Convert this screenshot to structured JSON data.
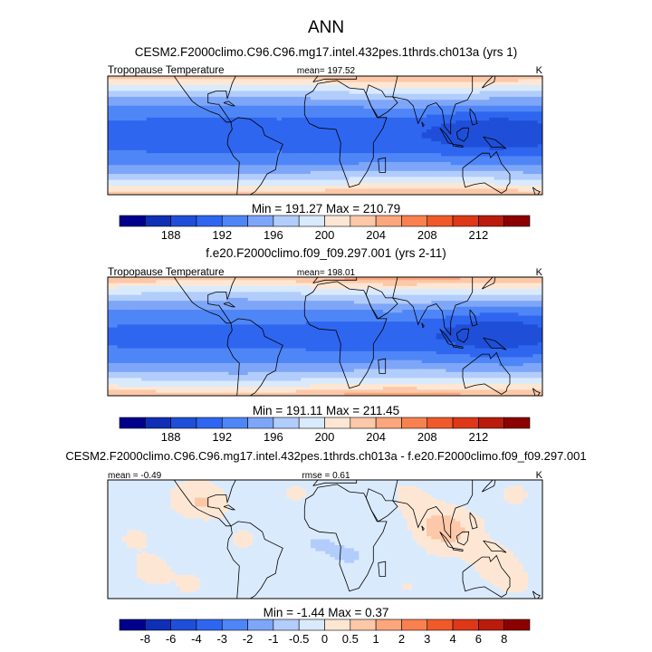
{
  "page_title": "ANN",
  "colors": {
    "abs_scale": [
      "#00008c",
      "#0f2fb4",
      "#1f4fd8",
      "#2f66f0",
      "#4f86f7",
      "#7ea6f8",
      "#b2cdfb",
      "#daeafd",
      "#fde7d4",
      "#fcc8a8",
      "#fba67c",
      "#f8814f",
      "#f05a2a",
      "#dd3818",
      "#b91c0c",
      "#8c0000"
    ],
    "diff_scale": [
      "#00008c",
      "#0f2fb4",
      "#1f4fd8",
      "#2f66f0",
      "#4f86f7",
      "#7ea6f8",
      "#b2cdfb",
      "#daeafd",
      "#fde7d4",
      "#fcc8a8",
      "#fba67c",
      "#f8814f",
      "#f05a2a",
      "#dd3818",
      "#b91c0c",
      "#8c0000"
    ],
    "coastline": "#000000"
  },
  "chart_data": [
    {
      "type": "heatmap",
      "title": "CESM2.F2000climo.C96.C96.mg17.intel.432pes.1thrds.ch013a (yrs 1)",
      "variable_label": "Tropopause Temperature",
      "mean_label": "mean= 197.52",
      "units": "K",
      "minmax_label": "Min = 191.27 Max = 210.79",
      "min": 191.27,
      "max": 210.79,
      "colorbar_bounds": [
        186,
        188,
        190,
        192,
        194,
        196,
        198,
        200,
        202,
        204,
        206,
        208,
        210,
        212,
        214
      ],
      "colorbar_ticks": [
        "188",
        "192",
        "196",
        "200",
        "204",
        "208",
        "212"
      ],
      "field": "abs"
    },
    {
      "type": "heatmap",
      "title": "f.e20.F2000climo.f09_f09.297.001 (yrs 2-11)",
      "variable_label": "Tropopause Temperature",
      "mean_label": "mean= 198.01",
      "units": "K",
      "minmax_label": "Min = 191.11 Max = 211.45",
      "min": 191.11,
      "max": 211.45,
      "colorbar_bounds": [
        186,
        188,
        190,
        192,
        194,
        196,
        198,
        200,
        202,
        204,
        206,
        208,
        210,
        212,
        214
      ],
      "colorbar_ticks": [
        "188",
        "192",
        "196",
        "200",
        "204",
        "208",
        "212"
      ],
      "field": "abs"
    },
    {
      "type": "heatmap",
      "title": "CESM2.F2000climo.C96.C96.mg17.intel.432pes.1thrds.ch013a - f.e20.F2000climo.f09_f09.297.001",
      "mean_label": "mean =  -0.49",
      "rmse_label": "rmse =   0.61",
      "units": "K",
      "minmax_label": "Min =  -1.44 Max =   0.37",
      "min": -1.44,
      "max": 0.37,
      "colorbar_bounds": [
        -9,
        -8,
        -6,
        -4,
        -3,
        -2,
        -1,
        -0.5,
        0,
        0.5,
        1,
        2,
        3,
        4,
        6,
        8
      ],
      "colorbar_ticks": [
        "-8",
        "-6",
        "-4",
        "-3",
        "-2",
        "-1",
        "-0.5",
        "0",
        "0.5",
        "1",
        "2",
        "3",
        "4",
        "6",
        "8"
      ],
      "field": "diff"
    }
  ]
}
